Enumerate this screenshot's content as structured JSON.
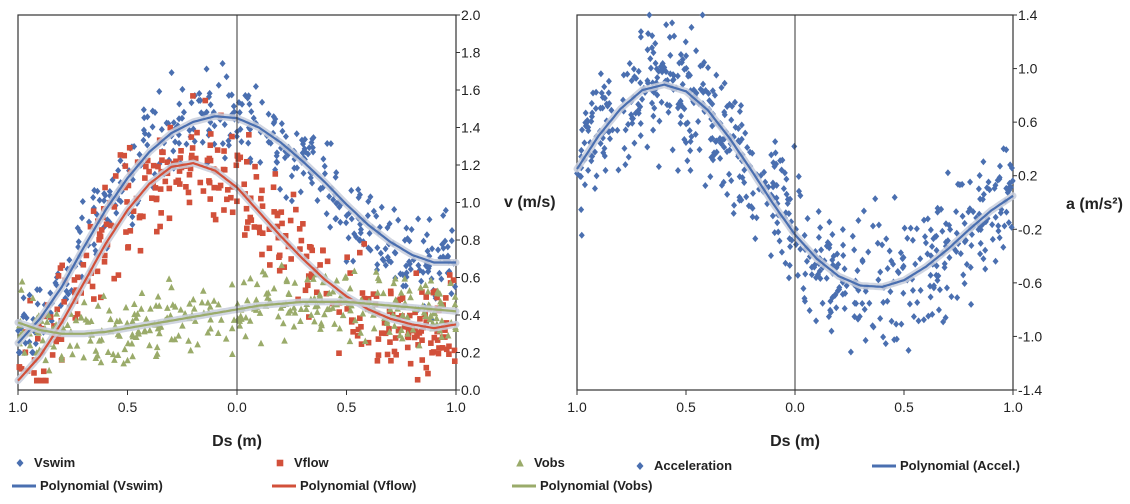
{
  "chart_data": [
    {
      "type": "scatter",
      "xlabel": "Ds (m)",
      "ylabel": "v (m/s)",
      "x_ticks": [
        "1.0",
        "0.5",
        "0.0",
        "0.5",
        "1.0"
      ],
      "y_ticks": [
        "0.0",
        "0.2",
        "0.4",
        "0.6",
        "0.8",
        "1.0",
        "1.2",
        "1.4",
        "1.6",
        "1.8",
        "2.0"
      ],
      "xlim": [
        -1.0,
        1.0
      ],
      "ylim": [
        0.0,
        2.0
      ],
      "legend_position": "bottom",
      "series": [
        {
          "name": "Vswim",
          "kind": "scatter",
          "marker": "diamond",
          "color": "#4a6fb0",
          "x_range": [
            -1.0,
            1.0
          ],
          "y_range": [
            0.2,
            2.0
          ],
          "trend": {
            "x": [
              -1.0,
              -0.9,
              -0.8,
              -0.7,
              -0.6,
              -0.5,
              -0.4,
              -0.3,
              -0.2,
              -0.1,
              0.0,
              0.1,
              0.2,
              0.3,
              0.4,
              0.5,
              0.6,
              0.7,
              0.8,
              0.9,
              1.0
            ],
            "y": [
              0.25,
              0.38,
              0.55,
              0.76,
              0.96,
              1.13,
              1.27,
              1.37,
              1.43,
              1.46,
              1.45,
              1.4,
              1.32,
              1.22,
              1.11,
              0.99,
              0.88,
              0.79,
              0.72,
              0.68,
              0.68
            ]
          }
        },
        {
          "name": "Vflow",
          "kind": "scatter",
          "marker": "square",
          "color": "#d2503a",
          "x_range": [
            -1.0,
            1.0
          ],
          "y_range": [
            0.05,
            1.65
          ],
          "trend": {
            "x": [
              -1.0,
              -0.9,
              -0.8,
              -0.7,
              -0.6,
              -0.5,
              -0.4,
              -0.3,
              -0.2,
              -0.1,
              0.0,
              0.1,
              0.2,
              0.3,
              0.4,
              0.5,
              0.6,
              0.7,
              0.8,
              0.9,
              1.0
            ],
            "y": [
              0.05,
              0.18,
              0.36,
              0.57,
              0.78,
              0.96,
              1.1,
              1.19,
              1.21,
              1.17,
              1.08,
              0.95,
              0.82,
              0.7,
              0.59,
              0.5,
              0.43,
              0.38,
              0.35,
              0.33,
              0.35
            ]
          }
        },
        {
          "name": "Vobs",
          "kind": "scatter",
          "marker": "triangle",
          "color": "#9aab6a",
          "x_range": [
            -1.0,
            1.0
          ],
          "y_range": [
            0.0,
            0.95
          ],
          "trend": {
            "x": [
              -1.0,
              -0.9,
              -0.8,
              -0.7,
              -0.6,
              -0.5,
              -0.4,
              -0.3,
              -0.2,
              -0.1,
              0.0,
              0.1,
              0.2,
              0.3,
              0.4,
              0.5,
              0.6,
              0.7,
              0.8,
              0.9,
              1.0
            ],
            "y": [
              0.36,
              0.32,
              0.3,
              0.3,
              0.31,
              0.33,
              0.35,
              0.37,
              0.39,
              0.41,
              0.43,
              0.45,
              0.46,
              0.47,
              0.47,
              0.47,
              0.46,
              0.45,
              0.44,
              0.43,
              0.42
            ]
          }
        }
      ],
      "legend": [
        {
          "label": "Vswim",
          "marker": "diamond",
          "color": "#4a6fb0"
        },
        {
          "label": "Vflow",
          "marker": "square",
          "color": "#d2503a"
        },
        {
          "label": "Vobs",
          "marker": "triangle",
          "color": "#9aab6a"
        },
        {
          "label": "Polynomial (Vswim)",
          "marker": "line",
          "color": "#4a6fb0"
        },
        {
          "label": "Polynomial (Vflow)",
          "marker": "line",
          "color": "#d2503a"
        },
        {
          "label": "Polynomial (Vobs)",
          "marker": "line",
          "color": "#9aab6a"
        }
      ]
    },
    {
      "type": "scatter",
      "xlabel": "Ds (m)",
      "ylabel": "a (m/s²)",
      "x_ticks": [
        "1.0",
        "0.5",
        "0.0",
        "0.5",
        "1.0"
      ],
      "y_ticks": [
        "-1.4",
        "-1.0",
        "-0.6",
        "-0.2",
        "0.2",
        "0.6",
        "1.0",
        "1.4"
      ],
      "xlim": [
        -1.0,
        1.0
      ],
      "ylim": [
        -1.4,
        1.4
      ],
      "legend_position": "bottom",
      "series": [
        {
          "name": "Acceleration",
          "kind": "scatter",
          "marker": "diamond",
          "color": "#4a6fb0",
          "x_range": [
            -1.0,
            1.0
          ],
          "y_range": [
            -1.4,
            1.4
          ],
          "trend": {
            "x": [
              -1.0,
              -0.9,
              -0.8,
              -0.7,
              -0.6,
              -0.5,
              -0.4,
              -0.3,
              -0.2,
              -0.1,
              0.0,
              0.1,
              0.2,
              0.3,
              0.4,
              0.5,
              0.6,
              0.7,
              0.8,
              0.9,
              1.0
            ],
            "y": [
              0.25,
              0.5,
              0.7,
              0.84,
              0.88,
              0.83,
              0.69,
              0.48,
              0.24,
              -0.01,
              -0.24,
              -0.42,
              -0.55,
              -0.62,
              -0.63,
              -0.58,
              -0.48,
              -0.35,
              -0.2,
              -0.06,
              0.05
            ]
          }
        }
      ],
      "legend": [
        {
          "label": "Acceleration",
          "marker": "diamond",
          "color": "#4a6fb0"
        },
        {
          "label": "Polynomial (Accel.)",
          "marker": "line",
          "color": "#4a6fb0"
        }
      ]
    }
  ]
}
